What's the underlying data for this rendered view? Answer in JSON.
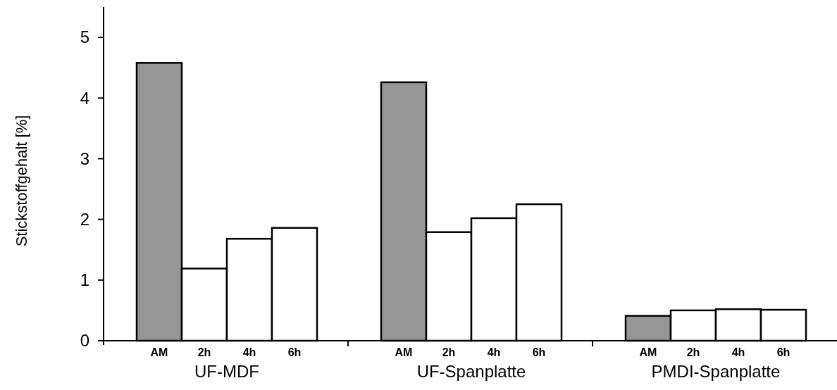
{
  "chart_data": {
    "type": "bar",
    "ylabel": "Stickstoffgehalt [%]",
    "categories": [
      "UF-MDF",
      "UF-Spanplatte",
      "PMDI-Spanplatte"
    ],
    "series": [
      {
        "name": "AM",
        "color": "#969696",
        "values": [
          4.58,
          4.26,
          0.41
        ]
      },
      {
        "name": "2h",
        "color": "#ffffff",
        "values": [
          1.19,
          1.79,
          0.5
        ]
      },
      {
        "name": "4h",
        "color": "#ffffff",
        "values": [
          1.68,
          2.02,
          0.52
        ]
      },
      {
        "name": "6h",
        "color": "#ffffff",
        "values": [
          1.86,
          2.25,
          0.51
        ]
      }
    ],
    "ylim": [
      0,
      5.5
    ],
    "yticks": [
      0,
      1,
      2,
      3,
      4,
      5
    ],
    "grid": false
  }
}
